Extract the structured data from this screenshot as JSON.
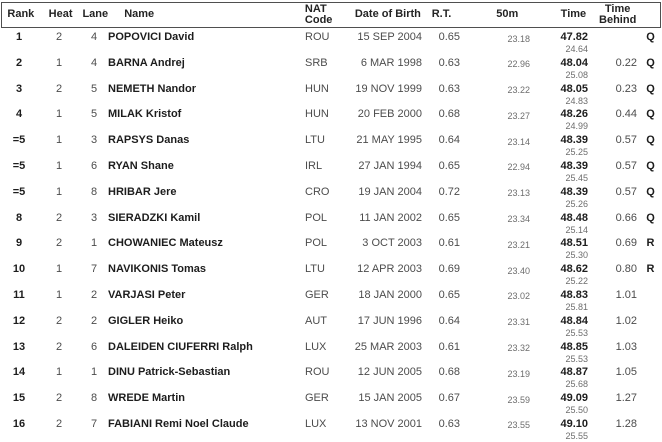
{
  "table": {
    "columns": [
      {
        "label": "Rank"
      },
      {
        "label": "Heat"
      },
      {
        "label": "Lane"
      },
      {
        "label": "Name"
      },
      {
        "label": "NAT Code"
      },
      {
        "label": "Date of Birth"
      },
      {
        "label": "R.T."
      },
      {
        "label": "50m"
      },
      {
        "label": "Time"
      },
      {
        "label": "Time Behind"
      },
      {
        "label": ""
      }
    ],
    "rows": [
      {
        "rank": "1",
        "heat": "2",
        "lane": "4",
        "name": "POPOVICI David",
        "nat": "ROU",
        "dob": "15 SEP 2004",
        "rt": "0.65",
        "split50": "23.18",
        "time": "47.82",
        "split2": "24.64",
        "behind": "",
        "qual": "Q"
      },
      {
        "rank": "2",
        "heat": "1",
        "lane": "4",
        "name": "BARNA Andrej",
        "nat": "SRB",
        "dob": "6 MAR 1998",
        "rt": "0.63",
        "split50": "22.96",
        "time": "48.04",
        "split2": "25.08",
        "behind": "0.22",
        "qual": "Q"
      },
      {
        "rank": "3",
        "heat": "2",
        "lane": "5",
        "name": "NEMETH Nandor",
        "nat": "HUN",
        "dob": "19 NOV 1999",
        "rt": "0.63",
        "split50": "23.22",
        "time": "48.05",
        "split2": "24.83",
        "behind": "0.23",
        "qual": "Q"
      },
      {
        "rank": "4",
        "heat": "1",
        "lane": "5",
        "name": "MILAK Kristof",
        "nat": "HUN",
        "dob": "20 FEB 2000",
        "rt": "0.68",
        "split50": "23.27",
        "time": "48.26",
        "split2": "24.99",
        "behind": "0.44",
        "qual": "Q"
      },
      {
        "rank": "=5",
        "heat": "1",
        "lane": "3",
        "name": "RAPSYS Danas",
        "nat": "LTU",
        "dob": "21 MAY 1995",
        "rt": "0.64",
        "split50": "23.14",
        "time": "48.39",
        "split2": "25.25",
        "behind": "0.57",
        "qual": "Q"
      },
      {
        "rank": "=5",
        "heat": "1",
        "lane": "6",
        "name": "RYAN Shane",
        "nat": "IRL",
        "dob": "27 JAN 1994",
        "rt": "0.65",
        "split50": "22.94",
        "time": "48.39",
        "split2": "25.45",
        "behind": "0.57",
        "qual": "Q"
      },
      {
        "rank": "=5",
        "heat": "1",
        "lane": "8",
        "name": "HRIBAR Jere",
        "nat": "CRO",
        "dob": "19 JAN 2004",
        "rt": "0.72",
        "split50": "23.13",
        "time": "48.39",
        "split2": "25.26",
        "behind": "0.57",
        "qual": "Q"
      },
      {
        "rank": "8",
        "heat": "2",
        "lane": "3",
        "name": "SIERADZKI Kamil",
        "nat": "POL",
        "dob": "11 JAN 2002",
        "rt": "0.65",
        "split50": "23.34",
        "time": "48.48",
        "split2": "25.14",
        "behind": "0.66",
        "qual": "Q"
      },
      {
        "rank": "9",
        "heat": "2",
        "lane": "1",
        "name": "CHOWANIEC Mateusz",
        "nat": "POL",
        "dob": "3 OCT 2003",
        "rt": "0.61",
        "split50": "23.21",
        "time": "48.51",
        "split2": "25.30",
        "behind": "0.69",
        "qual": "R"
      },
      {
        "rank": "10",
        "heat": "1",
        "lane": "7",
        "name": "NAVIKONIS Tomas",
        "nat": "LTU",
        "dob": "12 APR 2003",
        "rt": "0.69",
        "split50": "23.40",
        "time": "48.62",
        "split2": "25.22",
        "behind": "0.80",
        "qual": "R"
      },
      {
        "rank": "11",
        "heat": "1",
        "lane": "2",
        "name": "VARJASI Peter",
        "nat": "GER",
        "dob": "18 JAN 2000",
        "rt": "0.65",
        "split50": "23.02",
        "time": "48.83",
        "split2": "25.81",
        "behind": "1.01",
        "qual": ""
      },
      {
        "rank": "12",
        "heat": "2",
        "lane": "2",
        "name": "GIGLER Heiko",
        "nat": "AUT",
        "dob": "17 JUN 1996",
        "rt": "0.64",
        "split50": "23.31",
        "time": "48.84",
        "split2": "25.53",
        "behind": "1.02",
        "qual": ""
      },
      {
        "rank": "13",
        "heat": "2",
        "lane": "6",
        "name": "DALEIDEN CIUFERRI Ralph",
        "nat": "LUX",
        "dob": "25 MAR 2003",
        "rt": "0.61",
        "split50": "23.32",
        "time": "48.85",
        "split2": "25.53",
        "behind": "1.03",
        "qual": ""
      },
      {
        "rank": "14",
        "heat": "1",
        "lane": "1",
        "name": "DINU Patrick-Sebastian",
        "nat": "ROU",
        "dob": "12 JUN 2005",
        "rt": "0.68",
        "split50": "23.19",
        "time": "48.87",
        "split2": "25.68",
        "behind": "1.05",
        "qual": ""
      },
      {
        "rank": "15",
        "heat": "2",
        "lane": "8",
        "name": "WREDE Martin",
        "nat": "GER",
        "dob": "15 JAN 2005",
        "rt": "0.67",
        "split50": "23.59",
        "time": "49.09",
        "split2": "25.50",
        "behind": "1.27",
        "qual": ""
      },
      {
        "rank": "16",
        "heat": "2",
        "lane": "7",
        "name": "FABIANI Remi Noel Claude",
        "nat": "LUX",
        "dob": "13 NOV 2001",
        "rt": "0.63",
        "split50": "23.55",
        "time": "49.10",
        "split2": "25.55",
        "behind": "1.28",
        "qual": ""
      }
    ]
  }
}
